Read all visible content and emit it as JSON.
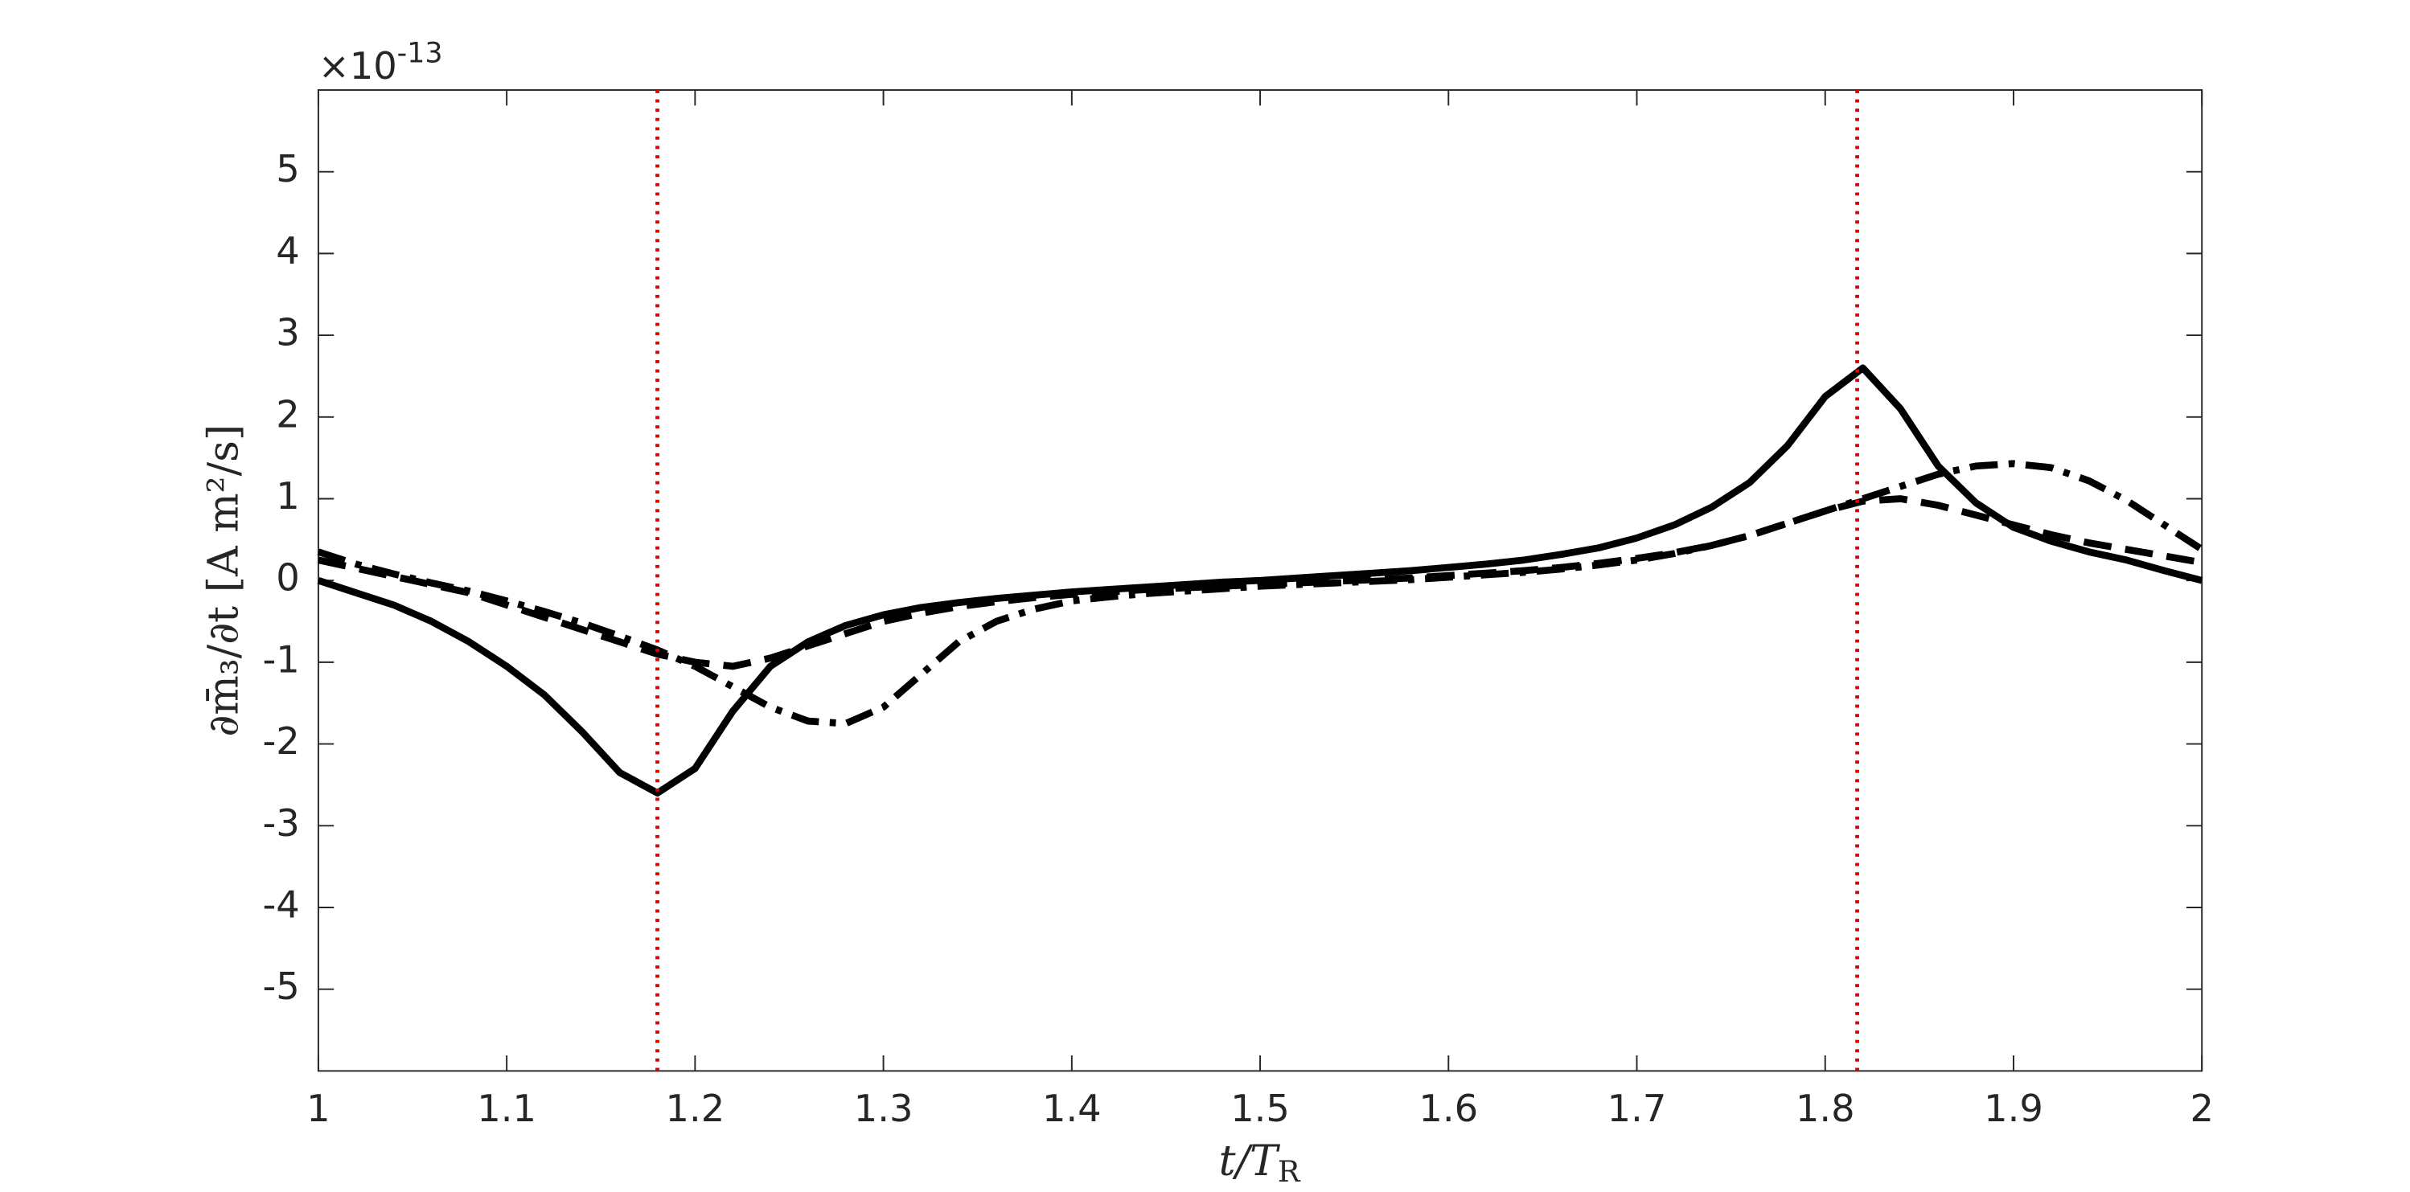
{
  "chart_data": {
    "type": "line",
    "y_multiplier": {
      "base": "×10",
      "exponent": "-13"
    },
    "ylabel": "∂m̄₃/∂t [A m²/s]",
    "xlabel": {
      "text": "t/T",
      "subscript": "R"
    },
    "xlim": [
      1,
      2
    ],
    "xticks": [
      1,
      1.1,
      1.2,
      1.3,
      1.4,
      1.5,
      1.6,
      1.7,
      1.8,
      1.9,
      2
    ],
    "ylim": [
      -6,
      6
    ],
    "yticks": [
      -5,
      -4,
      -3,
      -2,
      -1,
      0,
      1,
      2,
      3,
      4,
      5
    ],
    "vlines": {
      "color": "#e00000",
      "x": [
        1.18,
        1.817
      ]
    },
    "x": [
      1,
      1.02,
      1.04,
      1.06,
      1.08,
      1.1,
      1.12,
      1.14,
      1.16,
      1.18,
      1.2,
      1.22,
      1.24,
      1.26,
      1.28,
      1.3,
      1.32,
      1.34,
      1.36,
      1.38,
      1.4,
      1.42,
      1.44,
      1.46,
      1.48,
      1.5,
      1.52,
      1.54,
      1.56,
      1.58,
      1.6,
      1.62,
      1.64,
      1.66,
      1.68,
      1.7,
      1.72,
      1.74,
      1.76,
      1.78,
      1.8,
      1.82,
      1.84,
      1.86,
      1.88,
      1.9,
      1.92,
      1.94,
      1.96,
      1.98,
      2
    ],
    "series": [
      {
        "color": "#000000",
        "linestyle": "solid",
        "values": [
          0,
          -0.15,
          -0.3,
          -0.5,
          -0.75,
          -1.05,
          -1.4,
          -1.85,
          -2.35,
          -2.6,
          -2.3,
          -1.6,
          -1.05,
          -0.75,
          -0.55,
          -0.42,
          -0.33,
          -0.27,
          -0.22,
          -0.18,
          -0.14,
          -0.11,
          -0.08,
          -0.05,
          -0.02,
          0,
          0.03,
          0.06,
          0.09,
          0.12,
          0.16,
          0.2,
          0.25,
          0.32,
          0.4,
          0.52,
          0.68,
          0.9,
          1.2,
          1.65,
          2.25,
          2.6,
          2.1,
          1.4,
          0.95,
          0.65,
          0.48,
          0.35,
          0.25,
          0.12,
          0
        ]
      },
      {
        "color": "#000000",
        "linestyle": "dashed",
        "values": [
          0.25,
          0.15,
          0.05,
          -0.05,
          -0.15,
          -0.3,
          -0.45,
          -0.6,
          -0.75,
          -0.9,
          -1,
          -1.05,
          -0.95,
          -0.8,
          -0.65,
          -0.5,
          -0.4,
          -0.32,
          -0.26,
          -0.21,
          -0.17,
          -0.14,
          -0.11,
          -0.09,
          -0.07,
          -0.05,
          -0.03,
          -0.01,
          0.01,
          0.03,
          0.06,
          0.09,
          0.12,
          0.16,
          0.21,
          0.27,
          0.34,
          0.43,
          0.55,
          0.7,
          0.85,
          0.97,
          1,
          0.92,
          0.8,
          0.68,
          0.56,
          0.46,
          0.38,
          0.3,
          0.22
        ]
      },
      {
        "color": "#000000",
        "linestyle": "dashdot",
        "values": [
          0.35,
          0.2,
          0.08,
          -0.03,
          -0.13,
          -0.25,
          -0.38,
          -0.52,
          -0.68,
          -0.85,
          -1.05,
          -1.3,
          -1.55,
          -1.72,
          -1.75,
          -1.55,
          -1.15,
          -0.75,
          -0.5,
          -0.35,
          -0.25,
          -0.2,
          -0.16,
          -0.13,
          -0.1,
          -0.07,
          -0.05,
          -0.03,
          -0.01,
          0.01,
          0.04,
          0.07,
          0.1,
          0.14,
          0.19,
          0.25,
          0.33,
          0.43,
          0.55,
          0.7,
          0.85,
          1,
          1.15,
          1.3,
          1.4,
          1.43,
          1.38,
          1.22,
          0.98,
          0.68,
          0.38
        ]
      }
    ]
  }
}
